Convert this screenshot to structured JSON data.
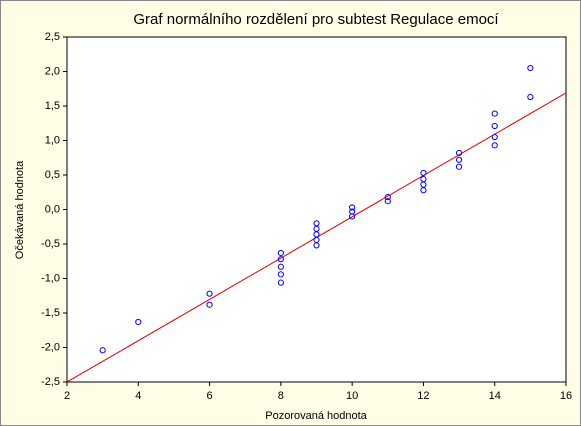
{
  "chart_data": {
    "type": "scatter",
    "title": "Graf normálního rozdělení pro subtest Regulace emocí",
    "xlabel": "Pozorovaná hodnota",
    "ylabel": "Očekávaná hodnota",
    "x": [
      3,
      4,
      6,
      6,
      8,
      8,
      8,
      8,
      8,
      9,
      9,
      9,
      9,
      9,
      10,
      10,
      10,
      11,
      11,
      12,
      12,
      12,
      12,
      13,
      13,
      13,
      14,
      14,
      14,
      14,
      15,
      15
    ],
    "y": [
      -2.04,
      -1.63,
      -1.22,
      -1.38,
      -0.63,
      -0.72,
      -0.83,
      -0.94,
      -1.06,
      -0.2,
      -0.28,
      -0.36,
      -0.44,
      -0.52,
      0.03,
      -0.03,
      -0.1,
      0.18,
      0.12,
      0.53,
      0.44,
      0.36,
      0.28,
      0.82,
      0.72,
      0.62,
      1.39,
      1.21,
      1.05,
      0.93,
      2.05,
      1.63
    ],
    "color": "#0000ff",
    "fit_line": {
      "x": [
        2,
        16
      ],
      "y": [
        -2.5,
        1.69
      ],
      "color": "#e00000"
    },
    "xlim": [
      2,
      16
    ],
    "xticks": [
      2,
      4,
      6,
      8,
      10,
      12,
      14,
      16
    ],
    "ylim": [
      -2.5,
      2.5
    ],
    "yticks": [
      {
        "value": -2.5,
        "label": "-2,5"
      },
      {
        "value": -2,
        "label": "-2,0"
      },
      {
        "value": -1.5,
        "label": "-1,5"
      },
      {
        "value": -1,
        "label": "-1,0"
      },
      {
        "value": -0.5,
        "label": "-0,5"
      },
      {
        "value": 0,
        "label": "0,0"
      },
      {
        "value": 0.5,
        "label": "0,5"
      },
      {
        "value": 1,
        "label": "1,0"
      },
      {
        "value": 1.5,
        "label": "1,5"
      },
      {
        "value": 2,
        "label": "2,0"
      },
      {
        "value": 2.5,
        "label": "2,5"
      }
    ],
    "grid": false
  }
}
